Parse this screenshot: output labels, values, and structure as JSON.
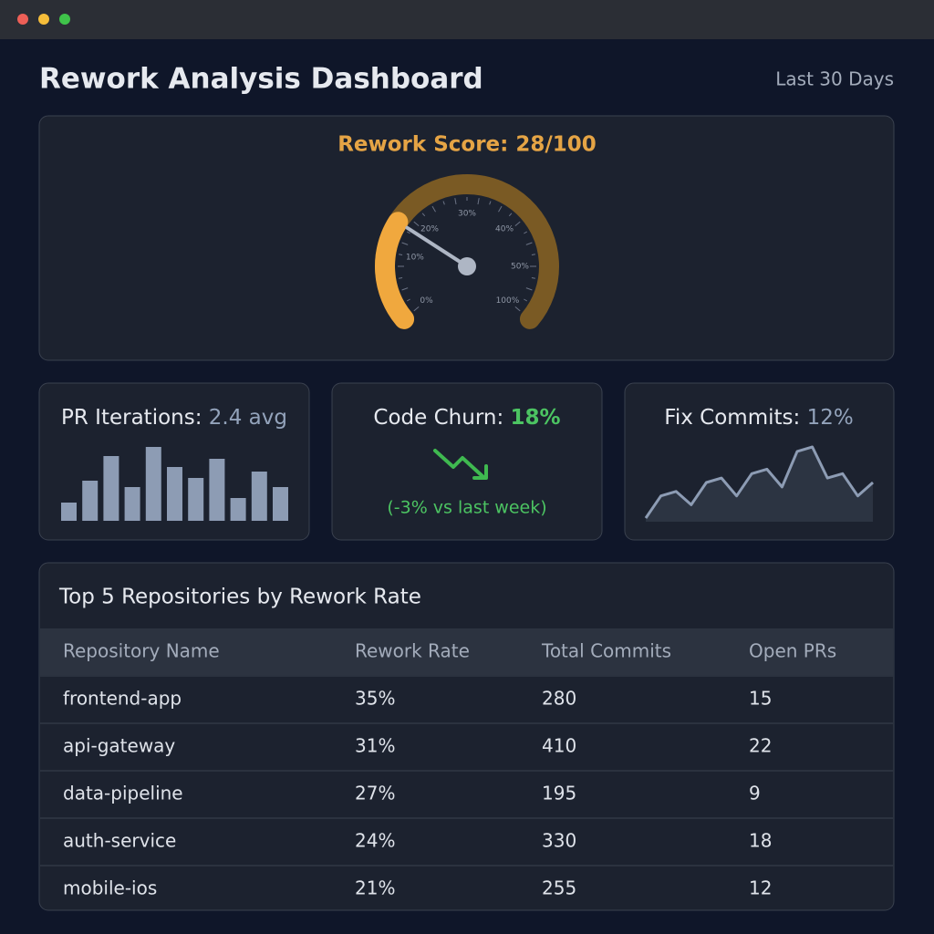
{
  "header": {
    "title": "Rework Analysis Dashboard",
    "period": "Last 30 Days"
  },
  "gauge": {
    "title": "Rework Score: 28/100",
    "score": 28,
    "max": 100,
    "labels": [
      "0%",
      "10%",
      "20%",
      "30%",
      "40%",
      "50%",
      "100%"
    ]
  },
  "pr_iterations": {
    "label": "PR Iterations: ",
    "value": "2.4 avg",
    "bars": [
      20,
      44,
      71,
      37,
      81,
      59,
      47,
      68,
      25,
      54,
      37
    ]
  },
  "code_churn": {
    "label": "Code Churn: ",
    "value": "18%",
    "change": "(-3% vs last week)"
  },
  "fix_commits": {
    "label": "Fix Commits: ",
    "value": "12%",
    "trend": [
      2,
      27,
      32,
      17,
      42,
      47,
      27,
      52,
      57,
      37,
      77,
      82,
      47,
      52,
      27,
      42
    ]
  },
  "table": {
    "title": "Top 5 Repositories by Rework Rate",
    "columns": [
      "Repository Name",
      "Rework Rate",
      "Total Commits",
      "Open PRs"
    ],
    "rows": [
      [
        "frontend-app",
        "35%",
        "280",
        "15"
      ],
      [
        "api-gateway",
        "31%",
        "410",
        "22"
      ],
      [
        "data-pipeline",
        "27%",
        "195",
        "9"
      ],
      [
        "auth-service",
        "24%",
        "330",
        "18"
      ],
      [
        "mobile-ios",
        "21%",
        "255",
        "12"
      ]
    ]
  }
}
